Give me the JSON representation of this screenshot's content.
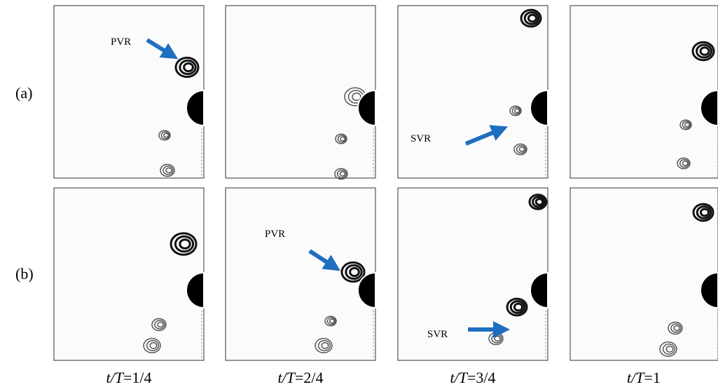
{
  "row_labels": [
    "(a)",
    "(b)"
  ],
  "column_labels": [
    {
      "symbol": "t/T",
      "value": "=1/4"
    },
    {
      "symbol": "t/T",
      "value": "=2/4"
    },
    {
      "symbol": "t/T",
      "value": "=3/4"
    },
    {
      "symbol": "t/T",
      "value": "=1"
    }
  ],
  "annotations": [
    {
      "label": "PVR"
    },
    {
      "label": "SVR"
    },
    {
      "label": "PVR"
    },
    {
      "label": "SVR"
    }
  ]
}
